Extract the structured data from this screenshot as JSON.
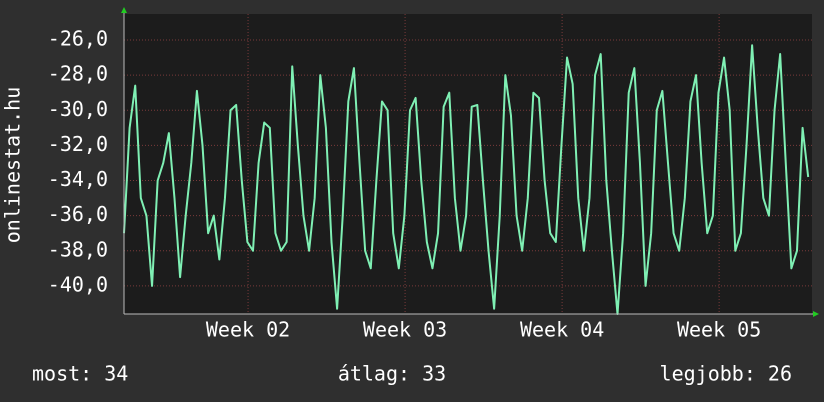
{
  "chart_data": {
    "type": "line",
    "y_label": "onlinestat.hu",
    "stats": [
      "most: 34",
      "átlag: 33",
      "legjobb: 26"
    ],
    "xlim": [
      0,
      30.67
    ],
    "xticks": [
      {
        "value": 5.53,
        "label": "Week 02"
      },
      {
        "value": 12.53,
        "label": "Week 03"
      },
      {
        "value": 19.53,
        "label": "Week 04"
      },
      {
        "value": 26.53,
        "label": "Week 05"
      }
    ],
    "ylim": [
      -41.6,
      -24.52
    ],
    "yticks": [
      {
        "value": -40,
        "label": "-40,0"
      },
      {
        "value": -38,
        "label": "-38,0"
      },
      {
        "value": -36,
        "label": "-36,0"
      },
      {
        "value": -34,
        "label": "-34,0"
      },
      {
        "value": -32,
        "label": "-32,0"
      },
      {
        "value": -30,
        "label": "-30,0"
      },
      {
        "value": -28,
        "label": "-28,0"
      },
      {
        "value": -26,
        "label": "-26,0"
      }
    ],
    "grid": true,
    "color": "#7ff0b4",
    "x": [
      0,
      0.25,
      0.5,
      0.75,
      1,
      1.25,
      1.5,
      1.75,
      2,
      2.25,
      2.5,
      2.75,
      3,
      3.25,
      3.5,
      3.75,
      4,
      4.25,
      4.5,
      4.75,
      5,
      5.25,
      5.5,
      5.75,
      6,
      6.25,
      6.5,
      6.75,
      7,
      7.25,
      7.5,
      7.75,
      8,
      8.25,
      8.5,
      8.75,
      9,
      9.25,
      9.5,
      9.75,
      10,
      10.25,
      10.5,
      10.75,
      11,
      11.25,
      11.5,
      11.75,
      12,
      12.25,
      12.5,
      12.75,
      13,
      13.25,
      13.5,
      13.75,
      14,
      14.25,
      14.5,
      14.75,
      15,
      15.25,
      15.5,
      15.75,
      16,
      16.25,
      16.5,
      16.75,
      17,
      17.25,
      17.5,
      17.75,
      18,
      18.25,
      18.5,
      18.75,
      19,
      19.25,
      19.5,
      19.75,
      20,
      20.25,
      20.5,
      20.75,
      21,
      21.25,
      21.5,
      21.75,
      22,
      22.25,
      22.5,
      22.75,
      23,
      23.25,
      23.5,
      23.75,
      24,
      24.25,
      24.5,
      24.75,
      25,
      25.25,
      25.5,
      25.75,
      26,
      26.25,
      26.5,
      26.75,
      27,
      27.25,
      27.5,
      27.75,
      28,
      28.25,
      28.5,
      28.75,
      29,
      29.25,
      29.5,
      29.75,
      30,
      30.25,
      30.5
    ],
    "values": [
      -37,
      -31,
      -28.6,
      -35,
      -36,
      -40,
      -34,
      -33,
      -31.3,
      -35,
      -39.5,
      -36,
      -33,
      -28.9,
      -32,
      -37,
      -36,
      -38.5,
      -35,
      -30,
      -29.7,
      -34,
      -37.5,
      -38,
      -33,
      -30.7,
      -31,
      -37,
      -38,
      -37.5,
      -27.5,
      -32,
      -36,
      -38,
      -35,
      -28,
      -31,
      -37.5,
      -41.3,
      -36,
      -29.5,
      -27.6,
      -33,
      -38,
      -39,
      -34,
      -29.5,
      -30,
      -37,
      -39,
      -36,
      -30,
      -29.3,
      -34,
      -37.5,
      -39,
      -37,
      -29.8,
      -29,
      -35,
      -38,
      -36,
      -29.8,
      -29.7,
      -34,
      -38,
      -41.3,
      -36,
      -28,
      -30.3,
      -36,
      -38,
      -35,
      -29,
      -29.3,
      -34,
      -37,
      -37.5,
      -32,
      -27,
      -28.5,
      -35,
      -38,
      -35,
      -28,
      -26.8,
      -34,
      -38,
      -41.6,
      -37,
      -29,
      -27.6,
      -33,
      -40,
      -37,
      -30,
      -28.9,
      -33,
      -37,
      -38,
      -35,
      -29.5,
      -28,
      -33,
      -37,
      -36,
      -29,
      -27,
      -30,
      -38,
      -37,
      -32,
      -26.3,
      -31,
      -35,
      -36,
      -30,
      -26.8,
      -33,
      -39,
      -38,
      -31,
      -33.8
    ]
  }
}
